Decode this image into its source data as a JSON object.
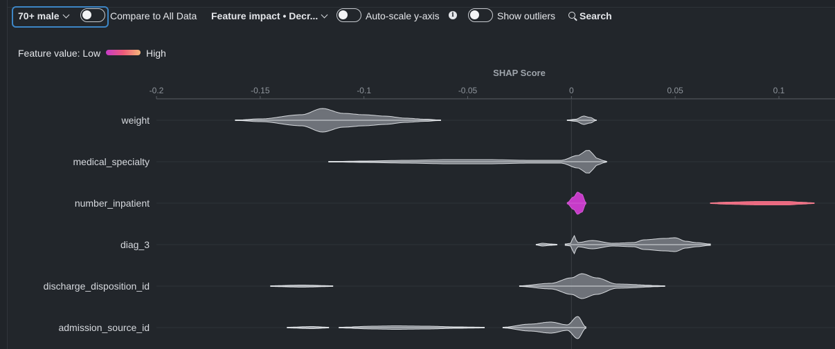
{
  "toolbar": {
    "cohort_label": "70+ male",
    "compare_label": "Compare to All Data",
    "sort_label": "Feature impact • Decr...",
    "autoscale_label": "Auto-scale y-axis",
    "outliers_label": "Show outliers",
    "search_label": "Search",
    "icons": [
      "chevron-down-icon",
      "toggle-icon",
      "info-icon",
      "search-icon"
    ]
  },
  "legend": {
    "prefix": "Feature value: Low",
    "high": "High",
    "colors": [
      "#c63bc8",
      "#ee5a7a",
      "#f5b87a"
    ]
  },
  "colors": {
    "accent": "#3d86c6",
    "violin_fill": "#8a8f96",
    "violin_stroke": "#d9dce0",
    "highlight_low": "#c63bc8",
    "highlight_high": "#e8607a"
  },
  "chart_data": {
    "type": "violin",
    "xlabel": "SHAP Score",
    "xlim": [
      -0.2,
      0.12
    ],
    "ticks": [
      -0.2,
      -0.15,
      -0.1,
      -0.05,
      0,
      0.05,
      0.1
    ],
    "tick_labels": [
      "-0.2",
      "-0.15",
      "-0.1",
      "-0.05",
      "0",
      "0.05",
      "0.1"
    ],
    "features": [
      {
        "name": "weight",
        "segments": [
          {
            "range": [
              -0.162,
              -0.063
            ],
            "color": "gray",
            "peaks": [
              [
                -0.162,
                0.2
              ],
              [
                -0.15,
                2
              ],
              [
                -0.13,
                8
              ],
              [
                -0.12,
                17
              ],
              [
                -0.11,
                10
              ],
              [
                -0.1,
                8
              ],
              [
                -0.09,
                6
              ],
              [
                -0.08,
                3
              ],
              [
                -0.07,
                1.5
              ],
              [
                -0.063,
                0.2
              ]
            ]
          },
          {
            "range": [
              -0.002,
              0.012
            ],
            "color": "gray",
            "peaks": [
              [
                -0.002,
                0.3
              ],
              [
                0.002,
                1.5
              ],
              [
                0.006,
                6
              ],
              [
                0.009,
                4
              ],
              [
                0.012,
                0.3
              ]
            ]
          }
        ]
      },
      {
        "name": "medical_specialty",
        "segments": [
          {
            "range": [
              -0.117,
              0.017
            ],
            "color": "gray",
            "peaks": [
              [
                -0.117,
                0.2
              ],
              [
                -0.1,
                1
              ],
              [
                -0.08,
                2
              ],
              [
                -0.06,
                3
              ],
              [
                -0.04,
                3
              ],
              [
                -0.02,
                2
              ],
              [
                -0.005,
                2
              ],
              [
                0.003,
                9
              ],
              [
                0.008,
                17
              ],
              [
                0.013,
                4
              ],
              [
                0.017,
                0.2
              ]
            ]
          }
        ]
      },
      {
        "name": "number_inpatient",
        "segments": [
          {
            "range": [
              -0.002,
              0.007
            ],
            "color": "magenta",
            "peaks": [
              [
                -0.002,
                1
              ],
              [
                0.001,
                9
              ],
              [
                0.003,
                16
              ],
              [
                0.005,
                13
              ],
              [
                0.007,
                1
              ]
            ]
          },
          {
            "range": [
              0.067,
              0.117
            ],
            "color": "red",
            "peaks": [
              [
                0.067,
                0.5
              ],
              [
                0.075,
                1.5
              ],
              [
                0.09,
                2.5
              ],
              [
                0.105,
                2.5
              ],
              [
                0.11,
                1.5
              ],
              [
                0.117,
                0.5
              ]
            ]
          }
        ]
      },
      {
        "name": "diag_3",
        "segments": [
          {
            "range": [
              -0.017,
              -0.007
            ],
            "color": "gray",
            "peaks": [
              [
                -0.017,
                0.5
              ],
              [
                -0.014,
                2
              ],
              [
                -0.01,
                1
              ],
              [
                -0.007,
                0.5
              ]
            ]
          },
          {
            "range": [
              -0.003,
              0.067
            ],
            "color": "gray",
            "peaks": [
              [
                -0.003,
                1
              ],
              [
                0,
                2
              ],
              [
                0.001,
                14
              ],
              [
                0.003,
                3
              ],
              [
                0.01,
                6
              ],
              [
                0.02,
                2
              ],
              [
                0.03,
                3
              ],
              [
                0.035,
                7
              ],
              [
                0.045,
                9
              ],
              [
                0.05,
                10
              ],
              [
                0.055,
                5
              ],
              [
                0.06,
                3
              ],
              [
                0.067,
                1
              ]
            ]
          }
        ]
      },
      {
        "name": "discharge_disposition_id",
        "segments": [
          {
            "range": [
              -0.145,
              -0.115
            ],
            "color": "gray",
            "peaks": [
              [
                -0.145,
                0.5
              ],
              [
                -0.13,
                1.5
              ],
              [
                -0.115,
                0.5
              ]
            ]
          },
          {
            "range": [
              -0.025,
              0.045
            ],
            "color": "gray",
            "peaks": [
              [
                -0.025,
                0.5
              ],
              [
                -0.01,
                4
              ],
              [
                0,
                12
              ],
              [
                0.005,
                18
              ],
              [
                0.012,
                12
              ],
              [
                0.022,
                3
              ],
              [
                0.045,
                0.5
              ]
            ]
          }
        ]
      },
      {
        "name": "admission_source_id",
        "segments": [
          {
            "range": [
              -0.137,
              -0.117
            ],
            "color": "gray",
            "peaks": [
              [
                -0.137,
                0.5
              ],
              [
                -0.125,
                1.5
              ],
              [
                -0.117,
                0.5
              ]
            ]
          },
          {
            "range": [
              -0.112,
              -0.042
            ],
            "color": "gray",
            "peaks": [
              [
                -0.112,
                0.5
              ],
              [
                -0.095,
                2
              ],
              [
                -0.085,
                2.5
              ],
              [
                -0.07,
                2
              ],
              [
                -0.055,
                1
              ],
              [
                -0.042,
                0.5
              ]
            ]
          },
          {
            "range": [
              -0.033,
              0.007
            ],
            "color": "gray",
            "peaks": [
              [
                -0.033,
                0.5
              ],
              [
                -0.02,
                5
              ],
              [
                -0.01,
                8
              ],
              [
                -0.002,
                4
              ],
              [
                0.003,
                16
              ],
              [
                0.007,
                1
              ]
            ]
          }
        ]
      }
    ]
  }
}
